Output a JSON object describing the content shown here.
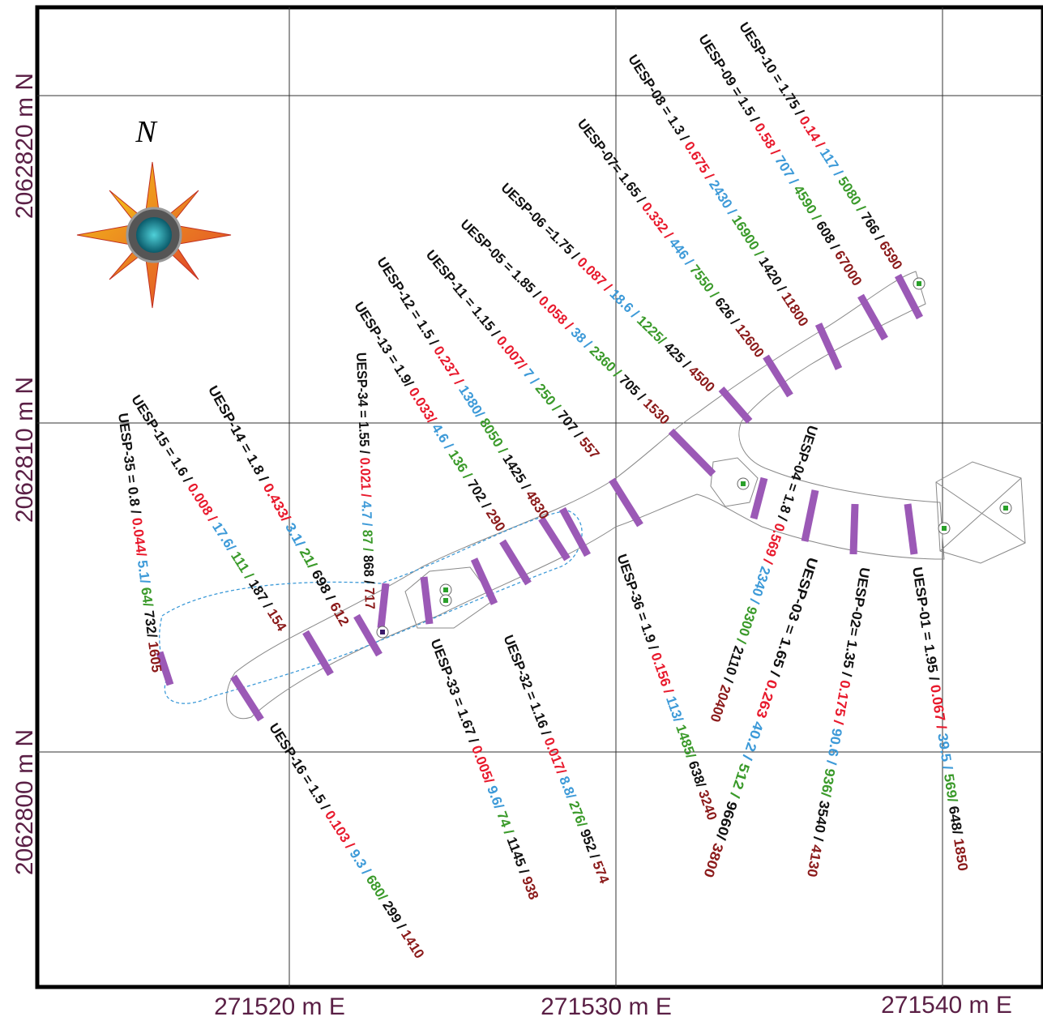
{
  "axes": {
    "x_labels": [
      "271520 m E",
      "271530 m E",
      "271540 m E"
    ],
    "y_labels": [
      "2062820 m N",
      "2062810 m N",
      "2062800 m N"
    ]
  },
  "compass": "N",
  "samples": [
    {
      "parts": [
        "UESP-10 = 1.75 /",
        "0.14 /",
        "117 /",
        "5080 /",
        "766 /",
        "6590"
      ]
    },
    {
      "parts": [
        "UESP-09 = 1.5 /",
        "0.58 /",
        "707 /",
        "4590 /",
        "608 /",
        "67000"
      ]
    },
    {
      "parts": [
        "UESP-08 = 1.3 /",
        "0.675 /",
        "2430 /",
        "16900 /",
        "1420 /",
        "11800"
      ]
    },
    {
      "parts": [
        "UESP-07= 1.65 /",
        "0.332 /",
        "446 /",
        "7550 /",
        "626 /",
        "12600"
      ]
    },
    {
      "parts": [
        "UESP-06 =1.75 /",
        "0.087 /",
        "18.6 /",
        "1225/",
        "425 /",
        "4500"
      ]
    },
    {
      "parts": [
        "UESP-05 = 1.85 /",
        "0.058 /",
        "38 /",
        "2360 /",
        "705 /",
        "1530"
      ]
    },
    {
      "parts": [
        "UESP-11 = 1.15 /",
        "0.007/",
        "7 /",
        "250 /",
        "707 /",
        "557"
      ]
    },
    {
      "parts": [
        "UESP-12 = 1.5 /",
        "0.237 /",
        "1380/",
        "8050 /",
        "1425 /",
        "4830"
      ]
    },
    {
      "parts": [
        "UESP-13 = 1.9/",
        "0.033/",
        "4.6 /",
        "136 /",
        "702 /",
        "290"
      ]
    },
    {
      "parts": [
        "UESP-34 = 1.55 /",
        "0.021 /",
        "4.7 /",
        "87 /",
        "868 /",
        "717"
      ]
    },
    {
      "parts": [
        "UESP-14 = 1.8 /",
        "0.433/",
        "3.1/",
        "21/",
        "698 /",
        "612"
      ]
    },
    {
      "parts": [
        "UESP-15 = 1.6 /",
        "0.008 /",
        "17.6/",
        "111 /",
        "187 /",
        "154"
      ]
    },
    {
      "parts": [
        "UESP-35 = 0.8 /",
        "0.044/",
        "5.1/",
        "64/",
        "732/",
        "1605"
      ]
    },
    {
      "parts": [
        "UESP-16 = 1.5 /",
        "0.103 /",
        "9.3 /",
        "680/",
        "299 /",
        "1410"
      ]
    },
    {
      "parts": [
        "UESP-33 = 1.67 /",
        "0.005/",
        "9.6/",
        "74 /",
        "1145 /",
        "938"
      ]
    },
    {
      "parts": [
        "UESP-32 = 1.16 /",
        "0.017/",
        "8.8/",
        "276/",
        "952 /",
        "574"
      ]
    },
    {
      "parts": [
        "UESP-36 = 1.9 /",
        "0.156 /",
        "113/",
        "1485/",
        "638/",
        "3240"
      ]
    },
    {
      "parts": [
        "UESP-04 = 1.8 /",
        "0.569 /",
        "2340 /",
        "9300 /",
        "2110 /",
        "20400"
      ]
    },
    {
      "parts": [
        "UESP-03 = 1.65 /",
        "0.263",
        "40.2 /",
        "512 /",
        "9660/",
        "3800"
      ]
    },
    {
      "parts": [
        "UESP-02= 1.35 /",
        "0.175 /",
        "90.6 /",
        "936/",
        "3540 /",
        "4130"
      ]
    },
    {
      "parts": [
        "UESP-01 = 1.95 /",
        "0.067 /",
        "39.5 /",
        "569/",
        "648/",
        "1850"
      ]
    }
  ]
}
